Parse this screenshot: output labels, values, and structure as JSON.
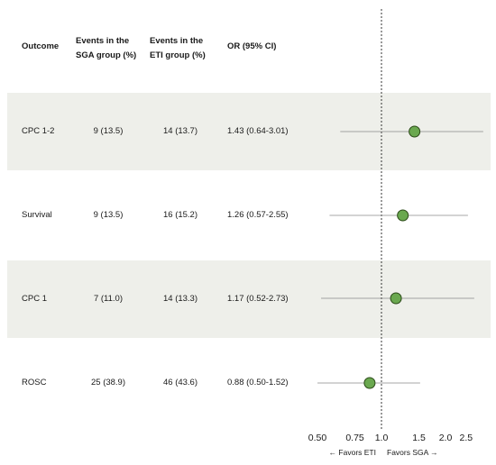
{
  "headers": {
    "outcome": "Outcome",
    "sga": [
      "Events in the",
      "SGA group (%)"
    ],
    "eti": [
      "Events in the",
      "ETI group (%)"
    ],
    "or": "OR (95% CI)"
  },
  "rows": [
    {
      "outcome": "CPC 1-2",
      "sga": "9 (13.5)",
      "eti": "14 (13.7)",
      "or_text": "1.43 (0.64-3.01)",
      "shaded": true
    },
    {
      "outcome": "Survival",
      "sga": "9 (13.5)",
      "eti": "16 (15.2)",
      "or_text": "1.26 (0.57-2.55)",
      "shaded": false
    },
    {
      "outcome": "CPC 1",
      "sga": "7 (11.0)",
      "eti": "14 (13.3)",
      "or_text": "1.17 (0.52-2.73)",
      "shaded": true
    },
    {
      "outcome": "ROSC",
      "sga": "25 (38.9)",
      "eti": "46 (43.6)",
      "or_text": "0.88 (0.50-1.52)",
      "shaded": false
    }
  ],
  "chart_data": {
    "type": "scatter",
    "x_scale": "log",
    "reference_line": 1.0,
    "categories": [
      "CPC 1-2",
      "Survival",
      "CPC 1",
      "ROSC"
    ],
    "or": [
      1.43,
      1.26,
      1.17,
      0.88
    ],
    "ci_low": [
      0.64,
      0.57,
      0.52,
      0.5
    ],
    "ci_high": [
      3.01,
      2.55,
      2.73,
      1.52
    ],
    "xticks": [
      0.5,
      0.75,
      1.0,
      1.5,
      2.0,
      2.5
    ],
    "xtick_labels": [
      "0.50",
      "0.75",
      "1.0",
      "1.5",
      "2.0",
      "2.5"
    ],
    "direction_left": "← Favors ETI",
    "direction_right": "Favors SGA →",
    "colors": {
      "point": "#6aa84f",
      "point_stroke": "#2b4a18",
      "ci_line": "#8a8a8a",
      "reference": "#333333",
      "band": "#eeefea"
    }
  }
}
